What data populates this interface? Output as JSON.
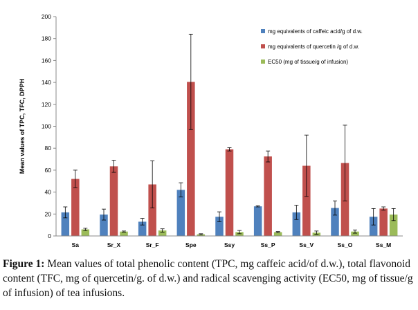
{
  "chart_data": {
    "type": "bar",
    "title": "",
    "xlabel": "",
    "ylabel": "Mean values of TPC, TFC, DPPH",
    "ylim": [
      0,
      200
    ],
    "yticks": [
      0,
      20,
      40,
      60,
      80,
      100,
      120,
      140,
      160,
      180,
      200
    ],
    "grid": false,
    "legend_position": "top-right",
    "categories": [
      "Sa",
      "Sr_X",
      "Sr_F",
      "Spe",
      "Ssy",
      "Ss_P",
      "Ss_V",
      "Ss_O",
      "Ss_M"
    ],
    "series": [
      {
        "name": "mg equivalents of  caffeic acid/g of d.w.",
        "color": "#4f81bd",
        "values": [
          21.5,
          19.5,
          13,
          42,
          17.5,
          27,
          21.5,
          25.5,
          17.5
        ],
        "errors": [
          5,
          5,
          3,
          6.5,
          4.5,
          0.5,
          6.5,
          6.5,
          7.5
        ]
      },
      {
        "name": "mg equivalents of quercetin /g of d.w.",
        "color": "#c0504d",
        "values": [
          52,
          63.5,
          47,
          140.5,
          79,
          72.5,
          64,
          66.5,
          25
        ],
        "errors": [
          8,
          5.5,
          21.5,
          43.5,
          1.5,
          5,
          28,
          34.5,
          1.5
        ]
      },
      {
        "name": "EC50 (mg of tissue/g of infusion)",
        "color": "#9bbb59",
        "values": [
          6,
          4,
          5,
          1.5,
          3.5,
          3.5,
          3,
          4,
          19.5
        ],
        "errors": [
          1,
          0.5,
          1.5,
          0.5,
          1.5,
          0.5,
          1.5,
          1.5,
          5.5
        ]
      }
    ]
  },
  "caption": {
    "label": "Figure 1:",
    "text": " Mean values of total phenolic content (TPC, mg caffeic acid/of d.w.), total flavonoid content (TFC, mg of quercetin/g. of d.w.) and radical scavenging activity (EC50, mg of tissue/g of infusion) of tea infusions."
  }
}
